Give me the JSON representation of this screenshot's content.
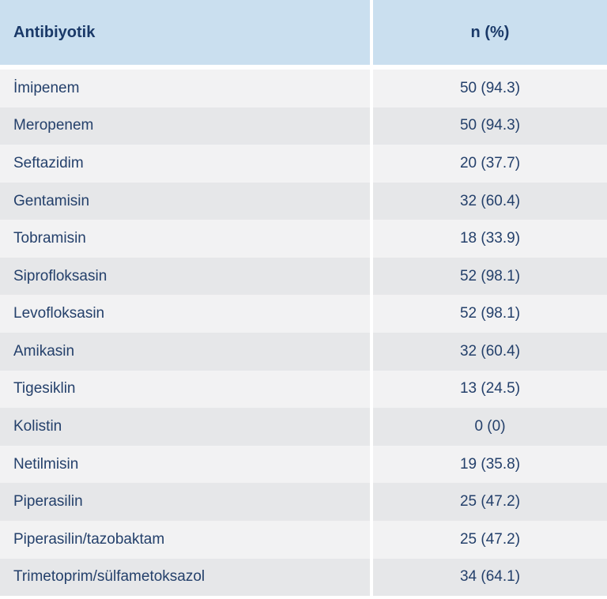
{
  "chart_data": {
    "type": "table",
    "columns": [
      "Antibiyotik",
      "n (%)"
    ],
    "rows": [
      {
        "name": "İmipenem",
        "n": 50,
        "pct": 94.3,
        "display": "50 (94.3)"
      },
      {
        "name": "Meropenem",
        "n": 50,
        "pct": 94.3,
        "display": "50 (94.3)"
      },
      {
        "name": "Seftazidim",
        "n": 20,
        "pct": 37.7,
        "display": "20 (37.7)"
      },
      {
        "name": "Gentamisin",
        "n": 32,
        "pct": 60.4,
        "display": "32 (60.4)"
      },
      {
        "name": "Tobramisin",
        "n": 18,
        "pct": 33.9,
        "display": "18 (33.9)"
      },
      {
        "name": "Siprofloksasin",
        "n": 52,
        "pct": 98.1,
        "display": "52 (98.1)"
      },
      {
        "name": "Levofloksasin",
        "n": 52,
        "pct": 98.1,
        "display": "52 (98.1)"
      },
      {
        "name": "Amikasin",
        "n": 32,
        "pct": 60.4,
        "display": "32 (60.4)"
      },
      {
        "name": "Tigesiklin",
        "n": 13,
        "pct": 24.5,
        "display": "13 (24.5)"
      },
      {
        "name": "Kolistin",
        "n": 0,
        "pct": 0,
        "display": "0 (0)"
      },
      {
        "name": "Netilmisin",
        "n": 19,
        "pct": 35.8,
        "display": "19 (35.8)"
      },
      {
        "name": "Piperasilin",
        "n": 25,
        "pct": 47.2,
        "display": "25 (47.2)"
      },
      {
        "name": "Piperasilin/tazobaktam",
        "n": 25,
        "pct": 47.2,
        "display": "25 (47.2)"
      },
      {
        "name": "Trimetoprim/sülfametoksazol",
        "n": 34,
        "pct": 64.1,
        "display": "34 (64.1)"
      }
    ]
  },
  "colors": {
    "header_bg": "#cadfef",
    "row_odd_bg": "#f2f2f3",
    "row_even_bg": "#e6e7e9",
    "header_text": "#1a3968",
    "body_text": "#24406b",
    "divider": "#ffffff"
  }
}
